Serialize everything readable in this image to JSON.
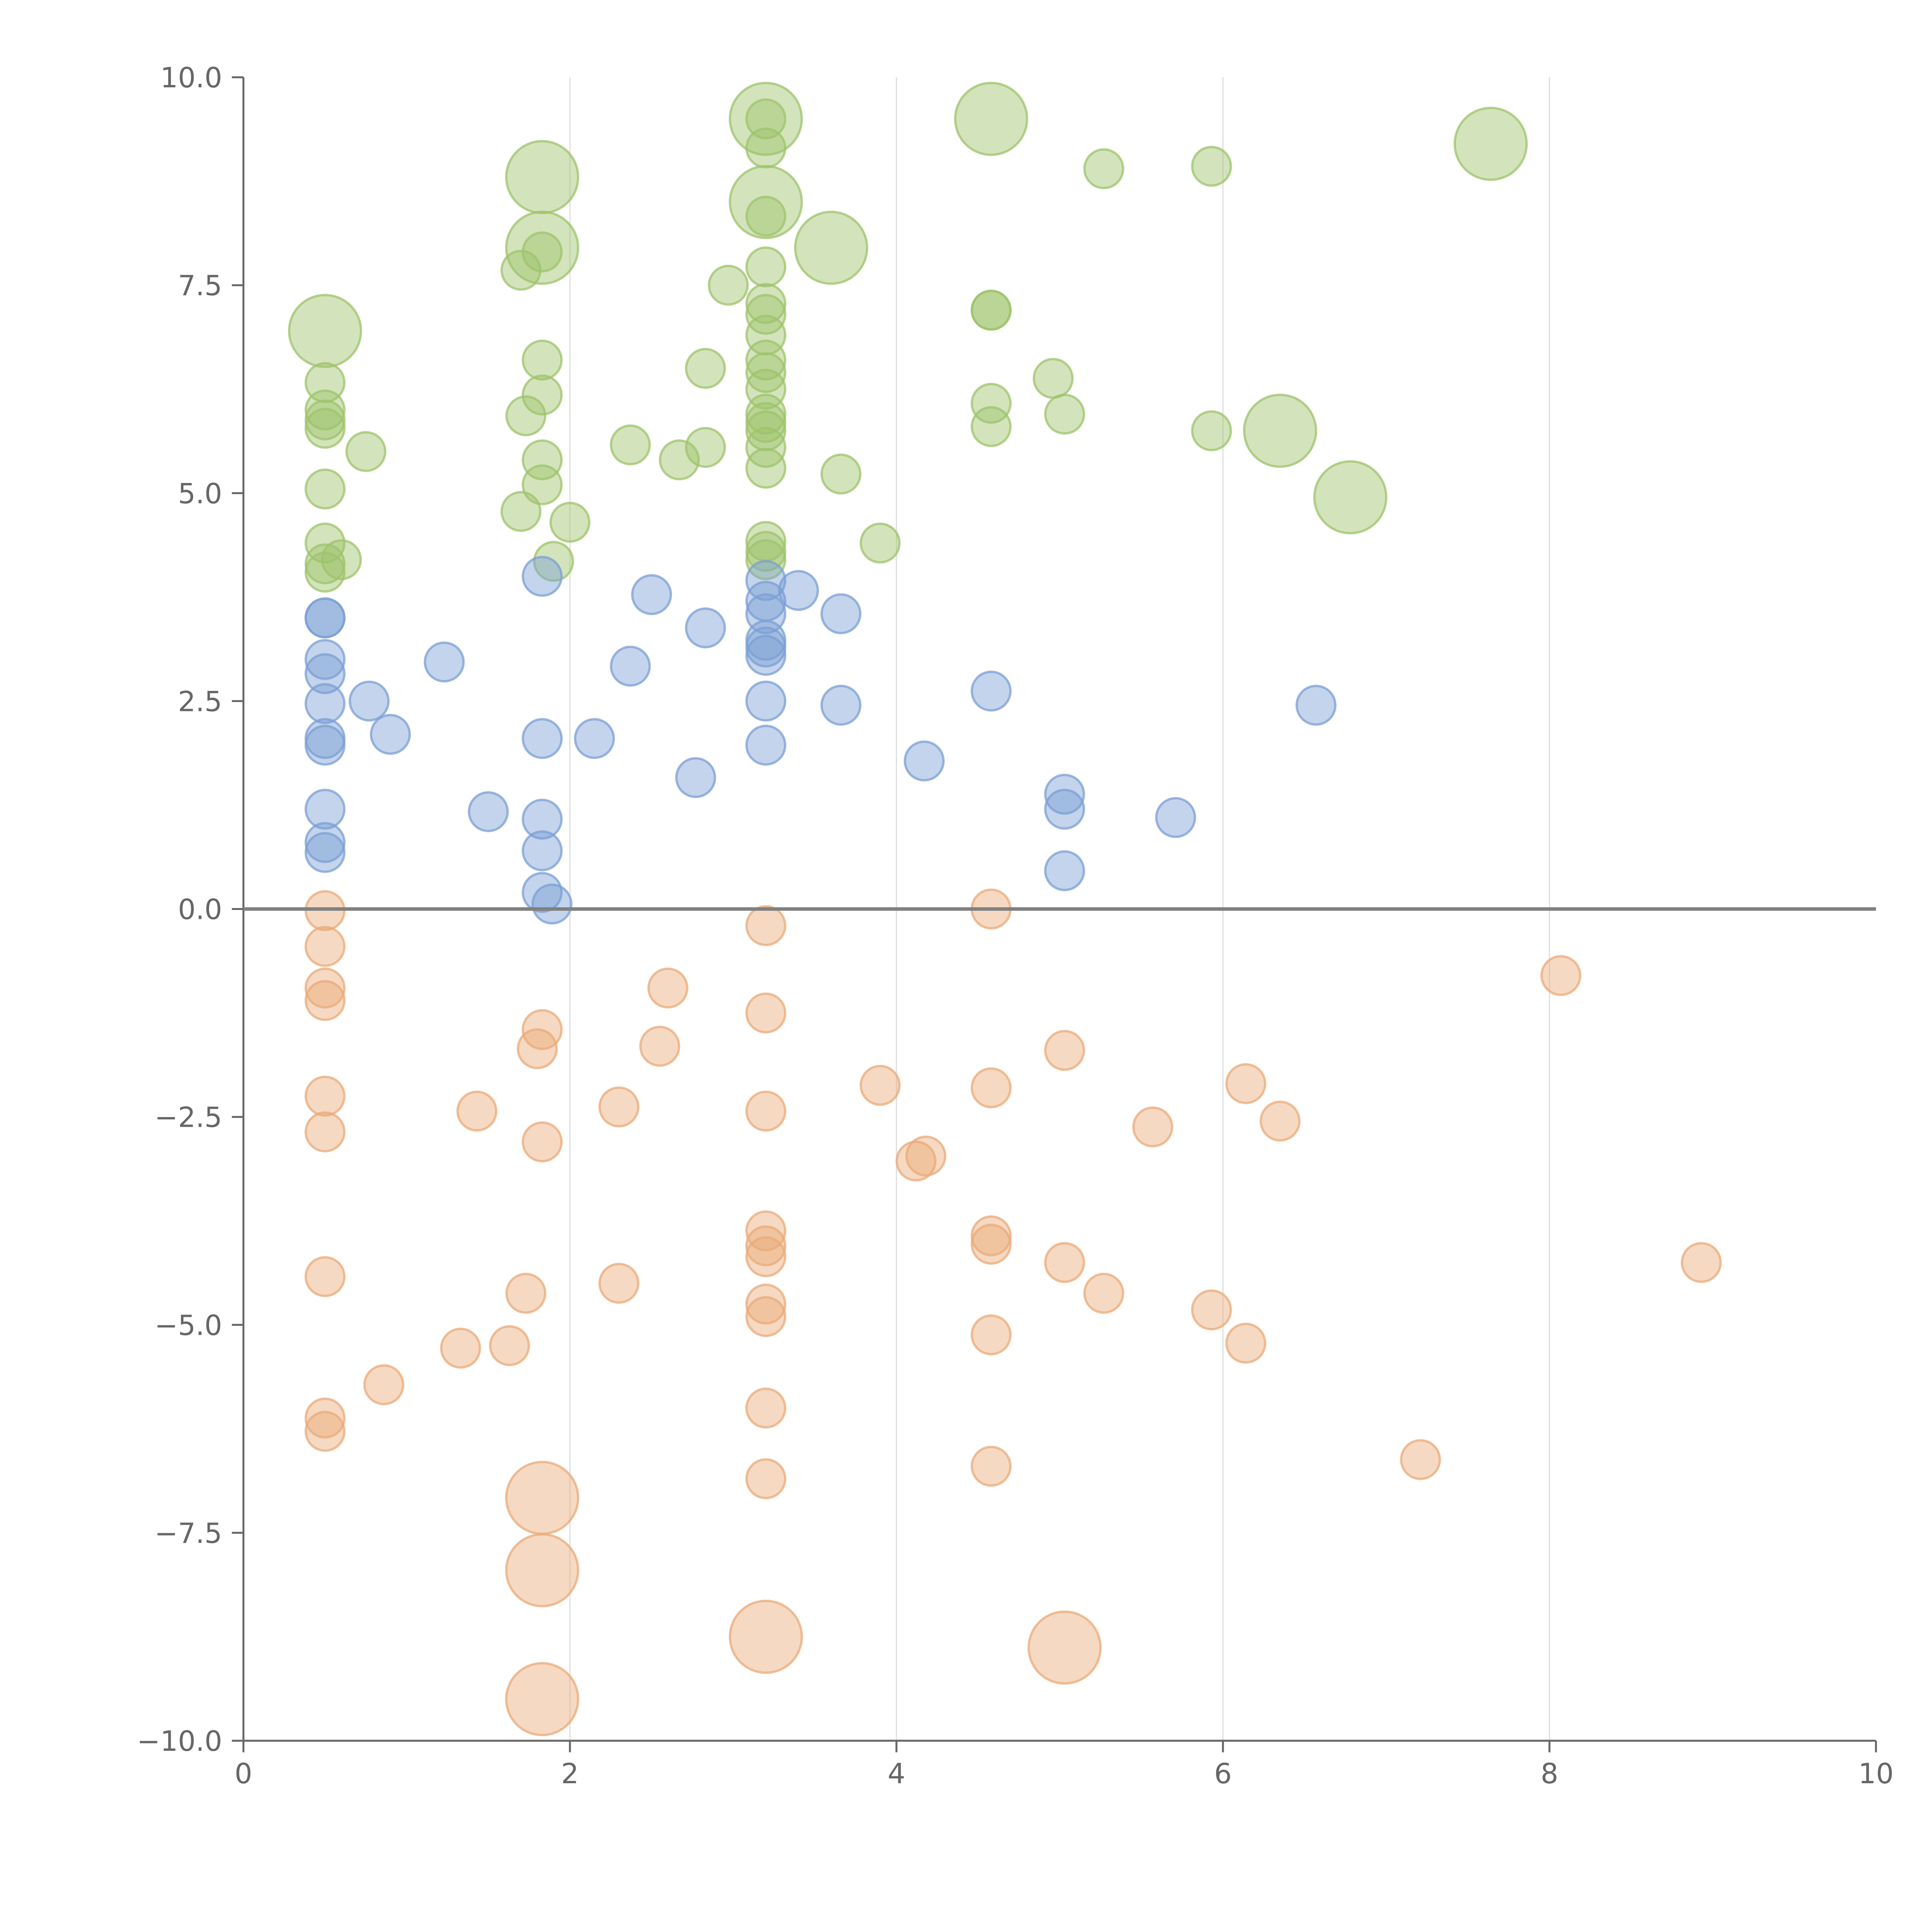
{
  "chart_data": {
    "type": "scatter",
    "title": "",
    "xlabel": "",
    "ylabel": "",
    "xlim": [
      0,
      10
    ],
    "ylim": [
      -10,
      10
    ],
    "x_ticks": [
      0,
      2,
      4,
      6,
      8,
      10
    ],
    "y_ticks": [
      10,
      7.5,
      5,
      2.5,
      0,
      -2.5,
      -5,
      -7.5,
      -10
    ],
    "x_tick_labels": [
      "0",
      "2",
      "4",
      "6",
      "8",
      "10"
    ],
    "y_tick_labels": [
      "10.0",
      "7.5",
      "5.0",
      "2.5",
      "0.0",
      "−2.5",
      "−5.0",
      "−7.5",
      "−10.0"
    ],
    "grid": "vertical",
    "zero_line": true,
    "series": [
      {
        "name": "green",
        "color": "#9dc36b",
        "points": [
          [
            3.2,
            9.5,
            1.4
          ],
          [
            4.58,
            9.5,
            1.4
          ],
          [
            7.64,
            9.2,
            1.4
          ],
          [
            1.83,
            8.8,
            1.4
          ],
          [
            3.2,
            8.5,
            1.4
          ],
          [
            1.83,
            7.95,
            1.4
          ],
          [
            3.6,
            7.95,
            1.4
          ],
          [
            0.5,
            6.95,
            1.4
          ],
          [
            6.35,
            5.75,
            1.4
          ],
          [
            6.78,
            4.95,
            1.4
          ],
          [
            3.2,
            9.5,
            0.6
          ],
          [
            5.27,
            8.9,
            0.6
          ],
          [
            5.93,
            8.93,
            0.6
          ],
          [
            3.2,
            9.15,
            0.6
          ],
          [
            3.2,
            8.33,
            0.6
          ],
          [
            1.83,
            7.9,
            0.6
          ],
          [
            1.7,
            7.68,
            0.6
          ],
          [
            3.2,
            7.72,
            0.6
          ],
          [
            2.97,
            7.5,
            0.6
          ],
          [
            3.2,
            7.28,
            0.6
          ],
          [
            3.2,
            7.15,
            0.6
          ],
          [
            4.58,
            7.2,
            0.6
          ],
          [
            4.58,
            7.2,
            0.6
          ],
          [
            3.2,
            6.9,
            0.6
          ],
          [
            0.5,
            6.33,
            0.6
          ],
          [
            1.83,
            6.6,
            0.6
          ],
          [
            2.83,
            6.5,
            0.6
          ],
          [
            3.2,
            6.6,
            0.6
          ],
          [
            3.2,
            6.45,
            0.6
          ],
          [
            3.2,
            6.25,
            0.6
          ],
          [
            4.96,
            6.38,
            0.6
          ],
          [
            1.83,
            6.18,
            0.6
          ],
          [
            4.58,
            6.08,
            0.6
          ],
          [
            0.5,
            6.0,
            0.6
          ],
          [
            0.5,
            5.88,
            0.6
          ],
          [
            0.5,
            5.78,
            0.6
          ],
          [
            1.73,
            5.93,
            0.6
          ],
          [
            3.2,
            5.95,
            0.6
          ],
          [
            3.2,
            5.85,
            0.6
          ],
          [
            3.2,
            5.75,
            0.6
          ],
          [
            5.03,
            5.95,
            0.6
          ],
          [
            4.58,
            5.8,
            0.6
          ],
          [
            5.93,
            5.75,
            0.6
          ],
          [
            0.75,
            5.5,
            0.6
          ],
          [
            2.37,
            5.58,
            0.6
          ],
          [
            2.83,
            5.55,
            0.6
          ],
          [
            2.67,
            5.4,
            0.6
          ],
          [
            3.2,
            5.55,
            0.6
          ],
          [
            3.2,
            5.3,
            0.6
          ],
          [
            3.66,
            5.23,
            0.6
          ],
          [
            1.83,
            5.4,
            0.6
          ],
          [
            0.5,
            5.05,
            0.6
          ],
          [
            1.83,
            5.1,
            0.6
          ],
          [
            1.7,
            4.78,
            0.6
          ],
          [
            2.0,
            4.65,
            0.6
          ],
          [
            0.5,
            4.4,
            0.6
          ],
          [
            3.2,
            4.42,
            0.6
          ],
          [
            3.2,
            4.3,
            0.6
          ],
          [
            3.2,
            4.2,
            0.6
          ],
          [
            3.9,
            4.4,
            0.6
          ],
          [
            0.5,
            4.15,
            0.6
          ],
          [
            0.5,
            4.05,
            0.6
          ],
          [
            0.6,
            4.2,
            0.6
          ],
          [
            1.9,
            4.18,
            0.6
          ]
        ]
      },
      {
        "name": "blue",
        "color": "#7b9fd4",
        "points": [
          [
            1.83,
            4.0,
            0.6
          ],
          [
            3.2,
            3.95,
            0.6
          ],
          [
            2.5,
            3.78,
            0.6
          ],
          [
            3.4,
            3.83,
            0.6
          ],
          [
            3.2,
            3.7,
            0.6
          ],
          [
            3.2,
            3.55,
            0.6
          ],
          [
            3.66,
            3.55,
            0.6
          ],
          [
            0.5,
            3.5,
            0.6
          ],
          [
            0.5,
            3.5,
            0.6
          ],
          [
            2.83,
            3.38,
            0.6
          ],
          [
            3.2,
            3.23,
            0.6
          ],
          [
            3.2,
            3.15,
            0.6
          ],
          [
            3.2,
            3.05,
            0.6
          ],
          [
            0.5,
            3.0,
            0.6
          ],
          [
            1.23,
            2.97,
            0.6
          ],
          [
            2.37,
            2.92,
            0.6
          ],
          [
            0.5,
            2.83,
            0.6
          ],
          [
            3.2,
            2.5,
            0.6
          ],
          [
            4.58,
            2.62,
            0.6
          ],
          [
            0.5,
            2.47,
            0.6
          ],
          [
            0.77,
            2.5,
            0.6
          ],
          [
            3.66,
            2.45,
            0.6
          ],
          [
            6.57,
            2.45,
            0.6
          ],
          [
            0.9,
            2.1,
            0.6
          ],
          [
            1.83,
            2.05,
            0.6
          ],
          [
            2.15,
            2.05,
            0.6
          ],
          [
            0.5,
            2.05,
            0.6
          ],
          [
            0.5,
            1.97,
            0.6
          ],
          [
            3.2,
            1.97,
            0.6
          ],
          [
            4.17,
            1.78,
            0.6
          ],
          [
            2.77,
            1.58,
            0.6
          ],
          [
            5.03,
            1.38,
            0.6
          ],
          [
            5.03,
            1.2,
            0.6
          ],
          [
            0.5,
            1.2,
            0.6
          ],
          [
            1.5,
            1.17,
            0.6
          ],
          [
            1.83,
            1.08,
            0.6
          ],
          [
            5.71,
            1.1,
            0.6
          ],
          [
            0.5,
            0.8,
            0.6
          ],
          [
            0.5,
            0.68,
            0.6
          ],
          [
            1.83,
            0.7,
            0.6
          ],
          [
            5.03,
            0.46,
            0.6
          ],
          [
            1.83,
            0.2,
            0.6
          ],
          [
            1.89,
            0.06,
            0.6
          ]
        ]
      },
      {
        "name": "orange",
        "color": "#eaaa78",
        "points": [
          [
            0.5,
            -0.02,
            0.6
          ],
          [
            4.58,
            0.0,
            0.6
          ],
          [
            3.2,
            -0.2,
            0.6
          ],
          [
            0.5,
            -0.45,
            0.6
          ],
          [
            8.07,
            -0.8,
            0.6
          ],
          [
            0.5,
            -0.95,
            0.6
          ],
          [
            2.6,
            -0.95,
            0.6
          ],
          [
            0.5,
            -1.1,
            0.6
          ],
          [
            3.2,
            -1.25,
            0.6
          ],
          [
            1.83,
            -1.45,
            0.6
          ],
          [
            1.8,
            -1.68,
            0.6
          ],
          [
            2.55,
            -1.65,
            0.6
          ],
          [
            5.03,
            -1.7,
            0.6
          ],
          [
            3.9,
            -2.12,
            0.6
          ],
          [
            4.58,
            -2.15,
            0.6
          ],
          [
            6.14,
            -2.1,
            0.6
          ],
          [
            0.5,
            -2.25,
            0.6
          ],
          [
            2.3,
            -2.38,
            0.6
          ],
          [
            1.43,
            -2.43,
            0.6
          ],
          [
            3.2,
            -2.43,
            0.6
          ],
          [
            6.35,
            -2.55,
            0.6
          ],
          [
            5.57,
            -2.62,
            0.6
          ],
          [
            0.5,
            -2.68,
            0.6
          ],
          [
            1.83,
            -2.8,
            0.6
          ],
          [
            4.18,
            -2.97,
            0.6
          ],
          [
            4.12,
            -3.03,
            0.6
          ],
          [
            3.2,
            -3.87,
            0.6
          ],
          [
            3.2,
            -4.05,
            0.6
          ],
          [
            3.2,
            -4.18,
            0.6
          ],
          [
            4.58,
            -3.93,
            0.6
          ],
          [
            4.58,
            -4.03,
            0.6
          ],
          [
            5.03,
            -4.25,
            0.6
          ],
          [
            8.93,
            -4.25,
            0.6
          ],
          [
            0.5,
            -4.42,
            0.6
          ],
          [
            2.3,
            -4.5,
            0.6
          ],
          [
            1.73,
            -4.62,
            0.6
          ],
          [
            5.27,
            -4.62,
            0.6
          ],
          [
            3.2,
            -4.75,
            0.6
          ],
          [
            3.2,
            -4.9,
            0.6
          ],
          [
            5.93,
            -4.82,
            0.6
          ],
          [
            4.58,
            -5.12,
            0.6
          ],
          [
            6.14,
            -5.22,
            0.6
          ],
          [
            1.33,
            -5.28,
            0.6
          ],
          [
            1.63,
            -5.25,
            0.6
          ],
          [
            0.86,
            -5.72,
            0.6
          ],
          [
            3.2,
            -6.0,
            0.6
          ],
          [
            0.5,
            -6.12,
            0.6
          ],
          [
            0.5,
            -6.28,
            0.6
          ],
          [
            7.21,
            -6.62,
            0.6
          ],
          [
            4.58,
            -6.7,
            0.6
          ],
          [
            3.2,
            -6.85,
            0.6
          ],
          [
            1.83,
            -7.08,
            1.4
          ],
          [
            1.83,
            -7.95,
            1.4
          ],
          [
            3.2,
            -8.75,
            1.4
          ],
          [
            5.03,
            -8.88,
            1.4
          ],
          [
            1.83,
            -9.5,
            1.4
          ]
        ]
      }
    ]
  }
}
